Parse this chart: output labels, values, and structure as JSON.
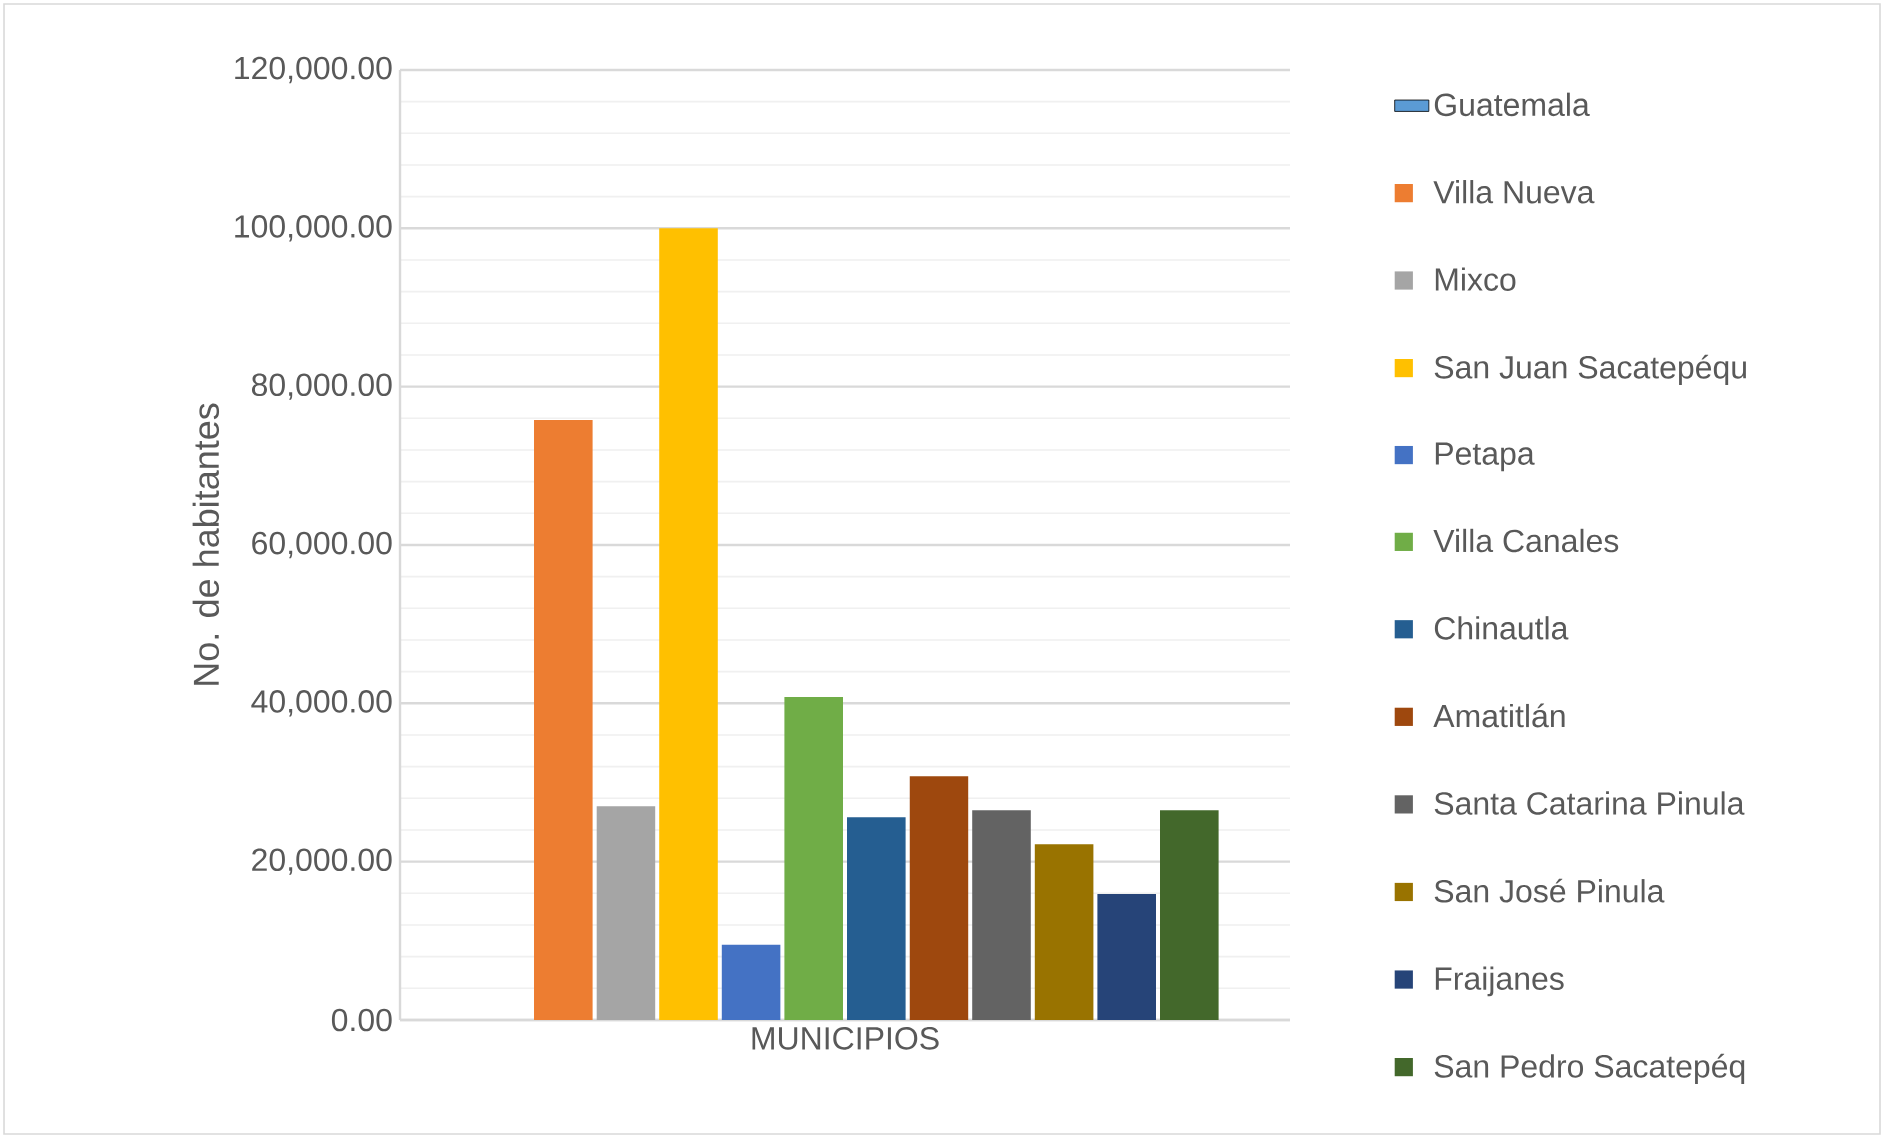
{
  "chart_data": {
    "type": "bar",
    "ylabel": "No. de habitantes",
    "categories": [
      "MUNICIPIOS"
    ],
    "series": [
      {
        "name": "Guatemala",
        "color": "#5b9bd5",
        "values": [
          null
        ]
      },
      {
        "name": "Villa Nueva",
        "color": "#ed7d31",
        "values": [
          75800
        ]
      },
      {
        "name": "Mixco",
        "color": "#a5a5a5",
        "values": [
          27000
        ]
      },
      {
        "name": "San Juan Sacatepéqu",
        "color": "#ffc000",
        "values": [
          100000
        ]
      },
      {
        "name": "Petapa",
        "color": "#4472c4",
        "values": [
          9500
        ]
      },
      {
        "name": "Villa Canales",
        "color": "#70ad47",
        "values": [
          40800
        ]
      },
      {
        "name": "Chinautla",
        "color": "#255e91",
        "values": [
          25600
        ]
      },
      {
        "name": "Amatitlán",
        "color": "#9e480e",
        "values": [
          30800
        ]
      },
      {
        "name": "Santa Catarina Pinula",
        "color": "#636363",
        "values": [
          26500
        ]
      },
      {
        "name": "San José Pinula",
        "color": "#997300",
        "values": [
          22200
        ]
      },
      {
        "name": "Fraijanes",
        "color": "#264478",
        "values": [
          15900
        ]
      },
      {
        "name": "San Pedro Sacatepéq",
        "color": "#43682b",
        "values": [
          26500
        ]
      }
    ],
    "ylim": [
      0,
      120000
    ],
    "yticks": [
      {
        "value": 0,
        "label": "0.00"
      },
      {
        "value": 20000,
        "label": "20,000.00"
      },
      {
        "value": 40000,
        "label": "40,000.00"
      },
      {
        "value": 60000,
        "label": "60,000.00"
      },
      {
        "value": 80000,
        "label": "80,000.00"
      },
      {
        "value": 100000,
        "label": "100,000.00"
      },
      {
        "value": 120000,
        "label": "120,000.00"
      }
    ],
    "grid": true,
    "legend": "right"
  }
}
